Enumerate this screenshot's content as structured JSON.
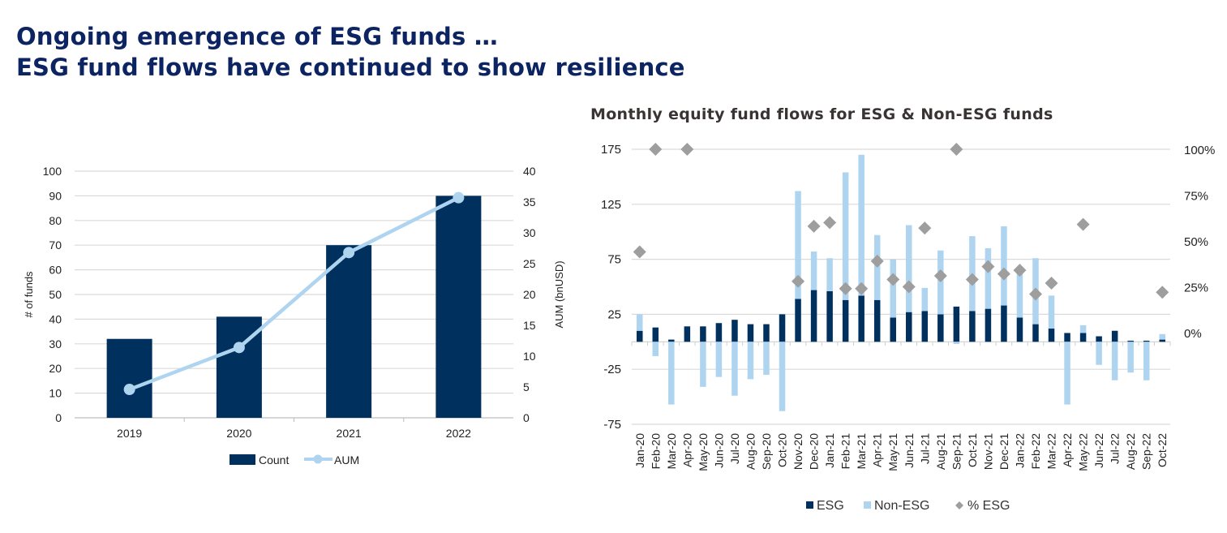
{
  "header": {
    "line1": "Ongoing emergence of ESG funds …",
    "line2": "ESG fund flows have continued to show resilience"
  },
  "colors": {
    "title": "#0c2461",
    "dark_bar": "#00305e",
    "light_bar": "#afd4f0",
    "diamond": "#9e9e9e",
    "grid": "#dadada"
  },
  "chart_data": [
    {
      "type": "bar",
      "title": "",
      "categories": [
        "2019",
        "2020",
        "2021",
        "2022"
      ],
      "series": [
        {
          "name": "Count",
          "kind": "bar",
          "axis": "left",
          "values": [
            32,
            41,
            70,
            90
          ]
        },
        {
          "name": "AUM",
          "kind": "line",
          "axis": "right",
          "values": [
            4.6,
            11.4,
            26.8,
            35.7
          ]
        }
      ],
      "xlabel": "",
      "ylabel": "# of funds",
      "y2label": "AUM (bnUSD)",
      "ylim": [
        0,
        100
      ],
      "y2lim": [
        0,
        40
      ],
      "yticks": [
        "0",
        "10",
        "20",
        "30",
        "40",
        "50",
        "60",
        "70",
        "80",
        "90",
        "100"
      ],
      "y2ticks": [
        "0",
        "5",
        "10",
        "15",
        "20",
        "25",
        "30",
        "35",
        "40"
      ],
      "grid": true,
      "legend": "bottom",
      "legend_labels": [
        "Count",
        "AUM"
      ]
    },
    {
      "type": "bar",
      "title": "Monthly equity fund flows for ESG & Non-ESG funds",
      "categories": [
        "Jan-20",
        "Feb-20",
        "Mar-20",
        "Apr-20",
        "May-20",
        "Jun-20",
        "Jul-20",
        "Aug-20",
        "Sep-20",
        "Oct-20",
        "Nov-20",
        "Dec-20",
        "Jan-21",
        "Feb-21",
        "Mar-21",
        "Apr-21",
        "May-21",
        "Jun-21",
        "Jul-21",
        "Aug-21",
        "Sep-21",
        "Oct-21",
        "Nov-21",
        "Dec-21",
        "Jan-22",
        "Feb-22",
        "Mar-22",
        "Apr-22",
        "May-22",
        "Jun-22",
        "Jul-22",
        "Aug-22",
        "Sep-22",
        "Oct-22"
      ],
      "series": [
        {
          "name": "ESG",
          "kind": "stacked-bar",
          "axis": "left",
          "values": [
            10,
            13,
            2,
            14,
            14,
            17,
            20,
            16,
            16,
            25,
            39,
            47,
            46,
            38,
            42,
            38,
            22,
            27,
            28,
            25,
            32,
            28,
            30,
            33,
            22,
            16,
            12,
            8,
            8,
            5,
            10,
            1,
            1,
            2
          ]
        },
        {
          "name": "Non-ESG",
          "kind": "stacked-bar",
          "axis": "left",
          "values": [
            15,
            -13,
            -57,
            0,
            -41,
            -32,
            -49,
            -34,
            -30,
            -63,
            98,
            35,
            30,
            116,
            128,
            59,
            53,
            79,
            21,
            58,
            -2,
            68,
            55,
            72,
            43,
            60,
            30,
            -57,
            7,
            -21,
            -35,
            -28,
            -35,
            5
          ]
        },
        {
          "name": "% ESG",
          "kind": "diamond",
          "axis": "right",
          "values": [
            44,
            100,
            null,
            100,
            null,
            null,
            null,
            null,
            null,
            null,
            28,
            58,
            60,
            24,
            24,
            39,
            29,
            25,
            57,
            31,
            100,
            29,
            36,
            32,
            34,
            21,
            27,
            null,
            59,
            null,
            null,
            null,
            null,
            22
          ]
        }
      ],
      "xlabel": "",
      "ylabel": "",
      "ylim": [
        -75,
        175
      ],
      "y2lim": [
        0,
        100
      ],
      "yticks": [
        "175",
        "125",
        "75",
        "25",
        "-25",
        "-75"
      ],
      "y2ticks": [
        "100%",
        "75%",
        "50%",
        "25%",
        "0%"
      ],
      "grid": true,
      "legend": "bottom",
      "legend_labels": [
        "ESG",
        "Non-ESG",
        "% ESG"
      ]
    }
  ]
}
